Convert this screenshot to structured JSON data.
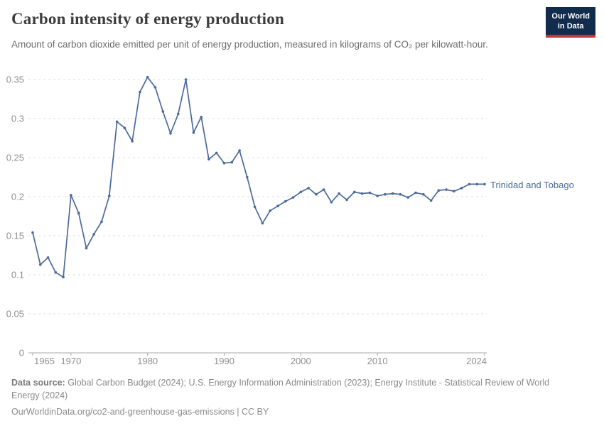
{
  "header": {
    "title": "Carbon intensity of energy production",
    "subtitle": "Amount of carbon dioxide emitted per unit of energy production, measured in kilograms of CO₂ per kilowatt-hour.",
    "logo": {
      "line1": "Our World",
      "line2": "in Data"
    }
  },
  "chart_data": {
    "type": "line",
    "title": "Carbon intensity of energy production",
    "xlabel": "",
    "ylabel": "kilograms of CO₂ per kilowatt-hour",
    "ylim": [
      0,
      0.35
    ],
    "yticks": [
      0,
      0.05,
      0.1,
      0.15,
      0.2,
      0.25,
      0.3,
      0.35
    ],
    "xticks": [
      1965,
      1970,
      1980,
      1990,
      2000,
      2010,
      2024
    ],
    "grid": "dashed horizontal",
    "legend_position": "right-end-of-line",
    "x": [
      1965,
      1966,
      1967,
      1968,
      1969,
      1970,
      1971,
      1972,
      1973,
      1974,
      1975,
      1976,
      1977,
      1978,
      1979,
      1980,
      1981,
      1982,
      1983,
      1984,
      1985,
      1986,
      1987,
      1988,
      1989,
      1990,
      1991,
      1992,
      1993,
      1994,
      1995,
      1996,
      1997,
      1998,
      1999,
      2000,
      2001,
      2002,
      2003,
      2004,
      2005,
      2006,
      2007,
      2008,
      2009,
      2010,
      2011,
      2012,
      2013,
      2014,
      2015,
      2016,
      2017,
      2018,
      2019,
      2020,
      2021,
      2022,
      2023,
      2024
    ],
    "series": [
      {
        "name": "Trinidad and Tobago",
        "color": "#4c6a9c",
        "values": [
          0.154,
          0.113,
          0.122,
          0.103,
          0.097,
          0.202,
          0.179,
          0.134,
          0.152,
          0.168,
          0.201,
          0.296,
          0.288,
          0.271,
          0.334,
          0.353,
          0.34,
          0.309,
          0.281,
          0.306,
          0.35,
          0.282,
          0.302,
          0.248,
          0.256,
          0.243,
          0.244,
          0.259,
          0.225,
          0.187,
          0.166,
          0.182,
          0.188,
          0.194,
          0.199,
          0.206,
          0.211,
          0.203,
          0.209,
          0.193,
          0.204,
          0.196,
          0.206,
          0.204,
          0.205,
          0.201,
          0.203,
          0.204,
          0.203,
          0.199,
          0.205,
          0.203,
          0.195,
          0.208,
          0.209,
          0.207,
          0.211,
          0.216,
          0.216,
          0.216
        ]
      }
    ]
  },
  "footer": {
    "source_label": "Data source:",
    "source_text": "Global Carbon Budget (2024); U.S. Energy Information Administration (2023); Energy Institute - Statistical Review of World Energy (2024)",
    "url_line": "OurWorldinData.org/co2-and-greenhouse-gas-emissions | CC BY"
  },
  "colors": {
    "line": "#4c6a9c",
    "gridline": "#dcdcdc",
    "axis": "#a8a8a8",
    "tick_label": "#8f8f8f",
    "logo_bg": "#122c4e",
    "logo_accent": "#c2392f"
  }
}
